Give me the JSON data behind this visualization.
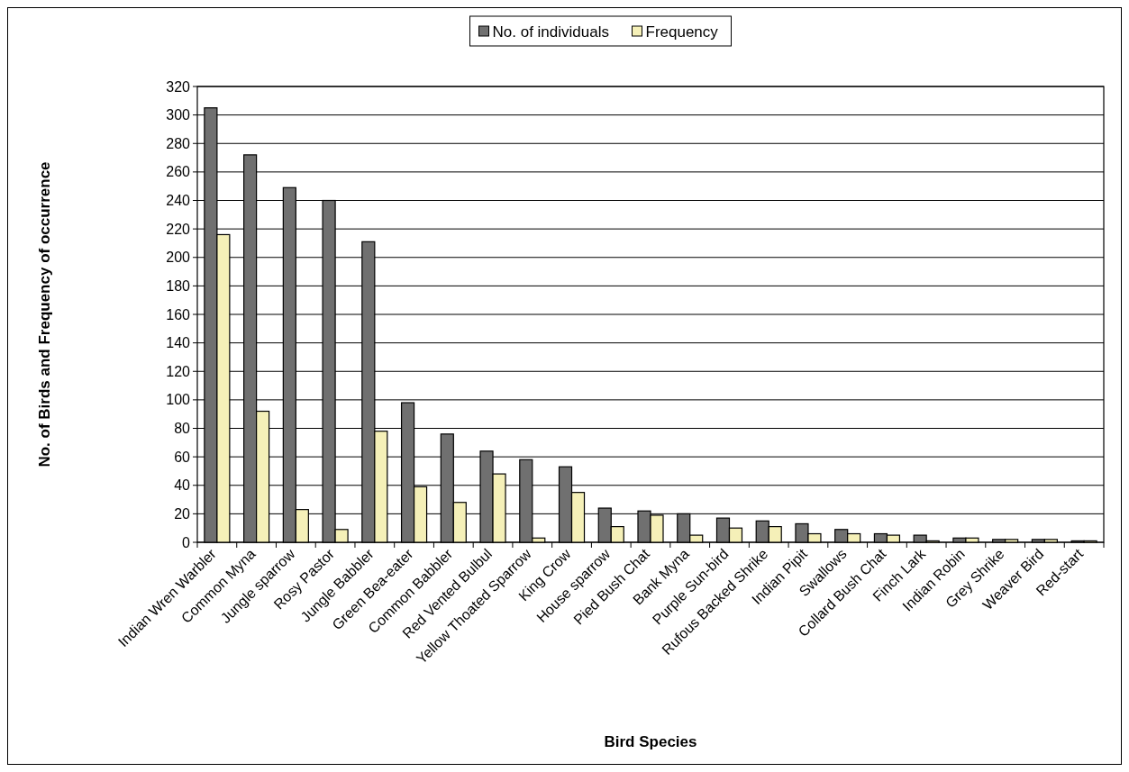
{
  "chart_data": {
    "type": "bar",
    "xlabel": "Bird Species",
    "ylabel": "No. of Birds and Frequency of occurrence",
    "categories": [
      "Indian Wren Warbler",
      "Common  Myna",
      "Jungle sparrow",
      "Rosy Pastor",
      "Jungle Babbler",
      "Green Bea-eater",
      "Common Babbler",
      "Red Vented Bulbul",
      "Yellow Thoated Sparrow",
      "King Crow",
      "House sparrow",
      "Pied Bush Chat",
      "Bank Myna",
      "Purple Sun-bird",
      "Rufous Backed Shrike",
      "Indian Pipit",
      "Swallows",
      "Collard Bush Chat",
      "Finch Lark",
      "Indian Robin",
      "Grey Shrike",
      "Weaver Bird",
      "Red-start"
    ],
    "series": [
      {
        "name": "No. of individuals",
        "color": "#707070",
        "values": [
          305,
          272,
          249,
          240,
          211,
          98,
          76,
          64,
          58,
          53,
          24,
          22,
          20,
          17,
          15,
          13,
          9,
          6,
          5,
          3,
          2,
          2,
          1
        ]
      },
      {
        "name": "Frequency",
        "color": "#f5f0b8",
        "values": [
          216,
          92,
          23,
          9,
          78,
          39,
          28,
          48,
          3,
          35,
          11,
          19,
          5,
          10,
          11,
          6,
          6,
          5,
          1,
          3,
          2,
          2,
          1
        ]
      }
    ],
    "ylim": [
      0,
      320
    ],
    "yticks": [
      0,
      20,
      40,
      60,
      80,
      100,
      120,
      140,
      160,
      180,
      200,
      220,
      240,
      260,
      280,
      300,
      320
    ],
    "grid": "y",
    "legend": "top"
  }
}
